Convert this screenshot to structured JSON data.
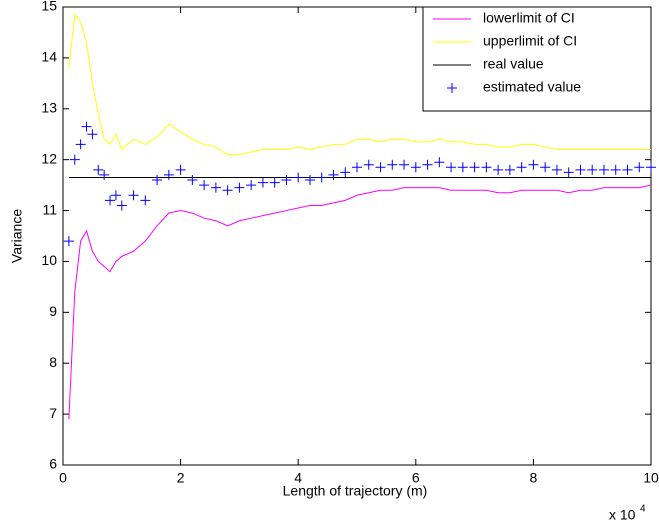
{
  "chart_data": {
    "type": "line",
    "xlabel": "Length of trajectory (m)",
    "ylabel": "Variance",
    "x_multiplier": {
      "base": "x 10",
      "exponent": "4"
    },
    "xlim": [
      0,
      10
    ],
    "xticks": [
      0,
      2,
      4,
      6,
      8,
      10
    ],
    "ylim": [
      6,
      15
    ],
    "yticks": [
      6,
      7,
      8,
      9,
      10,
      11,
      12,
      13,
      14,
      15
    ],
    "grid": false,
    "legend": "top-right",
    "x": [
      0.1,
      0.2,
      0.3,
      0.4,
      0.5,
      0.6,
      0.7,
      0.8,
      0.9,
      1.0,
      1.2,
      1.4,
      1.6,
      1.8,
      2.0,
      2.2,
      2.4,
      2.6,
      2.8,
      3.0,
      3.2,
      3.4,
      3.6,
      3.8,
      4.0,
      4.2,
      4.4,
      4.6,
      4.8,
      5.0,
      5.2,
      5.4,
      5.6,
      5.8,
      6.0,
      6.2,
      6.4,
      6.6,
      6.8,
      7.0,
      7.2,
      7.4,
      7.6,
      7.8,
      8.0,
      8.2,
      8.4,
      8.6,
      8.8,
      9.0,
      9.2,
      9.4,
      9.6,
      9.8,
      10.0
    ],
    "series": [
      {
        "name": "lowerlimit of CI",
        "color": "#ff00ff",
        "style": "line",
        "values": [
          6.9,
          9.4,
          10.4,
          10.6,
          10.2,
          10.0,
          9.9,
          9.8,
          10.0,
          10.1,
          10.2,
          10.4,
          10.7,
          10.95,
          11.0,
          10.95,
          10.85,
          10.8,
          10.7,
          10.8,
          10.85,
          10.9,
          10.95,
          11.0,
          11.05,
          11.1,
          11.1,
          11.15,
          11.2,
          11.3,
          11.35,
          11.4,
          11.4,
          11.45,
          11.45,
          11.45,
          11.45,
          11.4,
          11.4,
          11.4,
          11.4,
          11.35,
          11.35,
          11.4,
          11.4,
          11.4,
          11.4,
          11.35,
          11.4,
          11.4,
          11.45,
          11.45,
          11.45,
          11.45,
          11.5
        ]
      },
      {
        "name": "upperlimit of CI",
        "color": "#ffff00",
        "style": "line",
        "values": [
          13.8,
          14.85,
          14.7,
          14.3,
          13.5,
          12.9,
          12.4,
          12.3,
          12.5,
          12.2,
          12.4,
          12.3,
          12.45,
          12.7,
          12.55,
          12.4,
          12.3,
          12.25,
          12.1,
          12.1,
          12.15,
          12.2,
          12.2,
          12.2,
          12.25,
          12.2,
          12.25,
          12.3,
          12.3,
          12.4,
          12.4,
          12.35,
          12.4,
          12.4,
          12.35,
          12.35,
          12.4,
          12.35,
          12.35,
          12.3,
          12.3,
          12.25,
          12.25,
          12.3,
          12.3,
          12.25,
          12.2,
          12.2,
          12.2,
          12.2,
          12.2,
          12.2,
          12.2,
          12.2,
          12.2
        ]
      },
      {
        "name": "real value",
        "color": "#000000",
        "style": "line",
        "values": [
          11.65,
          11.65,
          11.65,
          11.65,
          11.65,
          11.65,
          11.65,
          11.65,
          11.65,
          11.65,
          11.65,
          11.65,
          11.65,
          11.65,
          11.65,
          11.65,
          11.65,
          11.65,
          11.65,
          11.65,
          11.65,
          11.65,
          11.65,
          11.65,
          11.65,
          11.65,
          11.65,
          11.65,
          11.65,
          11.65,
          11.65,
          11.65,
          11.65,
          11.65,
          11.65,
          11.65,
          11.65,
          11.65,
          11.65,
          11.65,
          11.65,
          11.65,
          11.65,
          11.65,
          11.65,
          11.65,
          11.65,
          11.65,
          11.65,
          11.65,
          11.65,
          11.65,
          11.65,
          11.65,
          11.65
        ]
      },
      {
        "name": "estimated value",
        "color": "#0000ff",
        "style": "marker",
        "values": [
          10.4,
          12.0,
          12.3,
          12.65,
          12.5,
          11.8,
          11.7,
          11.2,
          11.3,
          11.1,
          11.3,
          11.2,
          11.6,
          11.7,
          11.8,
          11.6,
          11.5,
          11.45,
          11.4,
          11.45,
          11.5,
          11.55,
          11.55,
          11.6,
          11.65,
          11.6,
          11.65,
          11.7,
          11.75,
          11.85,
          11.9,
          11.85,
          11.9,
          11.9,
          11.85,
          11.9,
          11.95,
          11.85,
          11.85,
          11.85,
          11.85,
          11.8,
          11.8,
          11.85,
          11.9,
          11.85,
          11.8,
          11.75,
          11.8,
          11.8,
          11.8,
          11.8,
          11.8,
          11.85,
          11.85
        ]
      }
    ]
  }
}
